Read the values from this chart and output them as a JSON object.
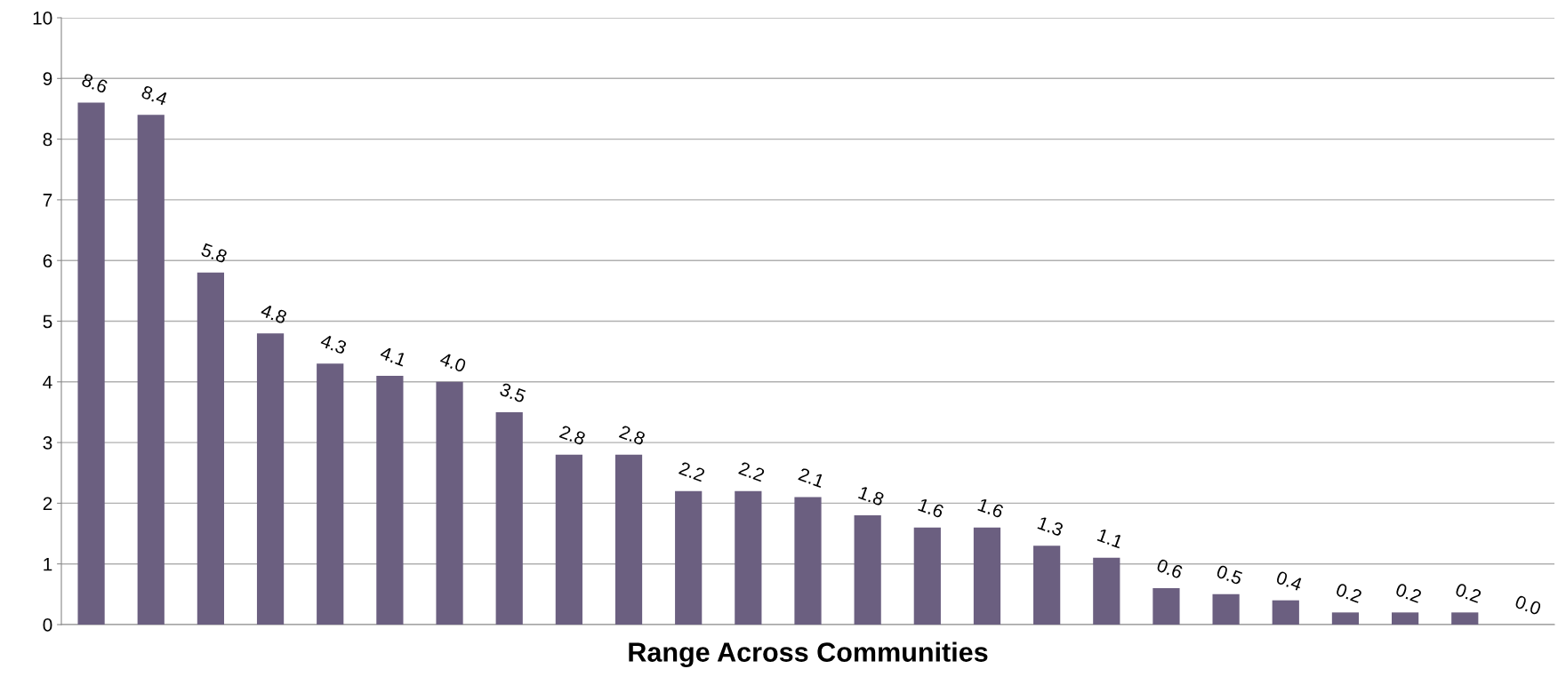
{
  "chart_data": {
    "type": "bar",
    "xlabel": "Range Across Communities",
    "categories": [
      null,
      null,
      null,
      null,
      null,
      null,
      null,
      null,
      null,
      null,
      null,
      null,
      null,
      null,
      null,
      null,
      null,
      null,
      null,
      null,
      null,
      null,
      null,
      null,
      null
    ],
    "values": [
      8.6,
      8.4,
      5.8,
      4.8,
      4.3,
      4.1,
      4.0,
      3.5,
      2.8,
      2.8,
      2.2,
      2.2,
      2.1,
      1.8,
      1.6,
      1.6,
      1.3,
      1.1,
      0.6,
      0.5,
      0.4,
      0.2,
      0.2,
      0.2,
      0.0
    ],
    "value_labels": [
      "8.6",
      "8.4",
      "5.8",
      "4.8",
      "4.3",
      "4.1",
      "4.0",
      "3.5",
      "2.8",
      "2.8",
      "2.2",
      "2.2",
      "2.1",
      "1.8",
      "1.6",
      "1.6",
      "1.3",
      "1.1",
      "0.6",
      "0.5",
      "0.4",
      "0.2",
      "0.2",
      "0.2",
      "0.0"
    ],
    "color": "#6b5f80",
    "ylim": [
      0,
      10
    ],
    "yticks": [
      0,
      1,
      2,
      3,
      4,
      5,
      6,
      7,
      8,
      9,
      10
    ],
    "grid": "y",
    "tick_labels": "y"
  }
}
